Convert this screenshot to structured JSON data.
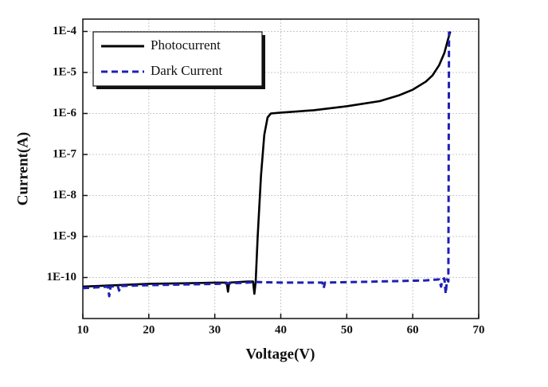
{
  "chart_data": {
    "type": "line",
    "x_label": "Voltage(V)",
    "y_label": "Current(A)",
    "xlim": [
      10,
      70
    ],
    "xticks": [
      10,
      20,
      30,
      40,
      50,
      60,
      70
    ],
    "ylim": [
      1e-11,
      0.0002
    ],
    "log_y": true,
    "yticks": [
      {
        "value": 0.0001,
        "label": "1E-4"
      },
      {
        "value": 1e-05,
        "label": "1E-5"
      },
      {
        "value": 1e-06,
        "label": "1E-6"
      },
      {
        "value": 1e-07,
        "label": "1E-7"
      },
      {
        "value": 1e-08,
        "label": "1E-8"
      },
      {
        "value": 1e-09,
        "label": "1E-9"
      },
      {
        "value": 1e-10,
        "label": "1E-10"
      }
    ],
    "grid": true,
    "legend": "top-left",
    "series": [
      {
        "name": "Photocurrent",
        "color": "#000000",
        "linestyle": "solid",
        "x": [
          10,
          15,
          20,
          25,
          30,
          31.8,
          32,
          32.2,
          35,
          35.8,
          36,
          36.2,
          36.5,
          37,
          37.5,
          38,
          38.5,
          40,
          45,
          50,
          55,
          58,
          60,
          62,
          63,
          64,
          64.8,
          65.3,
          65.7
        ],
        "values": [
          6e-11,
          6.5e-11,
          7e-11,
          7.2e-11,
          7.5e-11,
          7.5e-11,
          4.5e-11,
          7.5e-11,
          8e-11,
          8e-11,
          4e-11,
          8e-11,
          1e-09,
          3e-08,
          3e-07,
          8e-07,
          1e-06,
          1.05e-06,
          1.2e-06,
          1.5e-06,
          2e-06,
          2.8e-06,
          3.8e-06,
          6e-06,
          8.5e-06,
          1.5e-05,
          3e-05,
          6e-05,
          0.0001
        ]
      },
      {
        "name": "Dark Current",
        "color": "#1f1fb4",
        "linestyle": "dashed",
        "x": [
          10,
          13.8,
          14,
          14.2,
          15.3,
          15.5,
          15.7,
          20,
          30,
          35,
          36,
          40,
          46.3,
          46.5,
          46.7,
          55,
          62,
          64,
          64.3,
          64.5,
          64.8,
          65,
          65.2,
          65.4,
          65.5
        ],
        "values": [
          5.5e-11,
          6e-11,
          3.5e-11,
          6e-11,
          6.2e-11,
          4.8e-11,
          6.2e-11,
          6.5e-11,
          7e-11,
          7.5e-11,
          7.8e-11,
          7.5e-11,
          7.5e-11,
          5.5e-11,
          7.5e-11,
          8e-11,
          8.5e-11,
          9e-11,
          6e-11,
          9e-11,
          9.5e-11,
          4e-11,
          9e-11,
          8e-11,
          0.0001
        ]
      }
    ]
  }
}
